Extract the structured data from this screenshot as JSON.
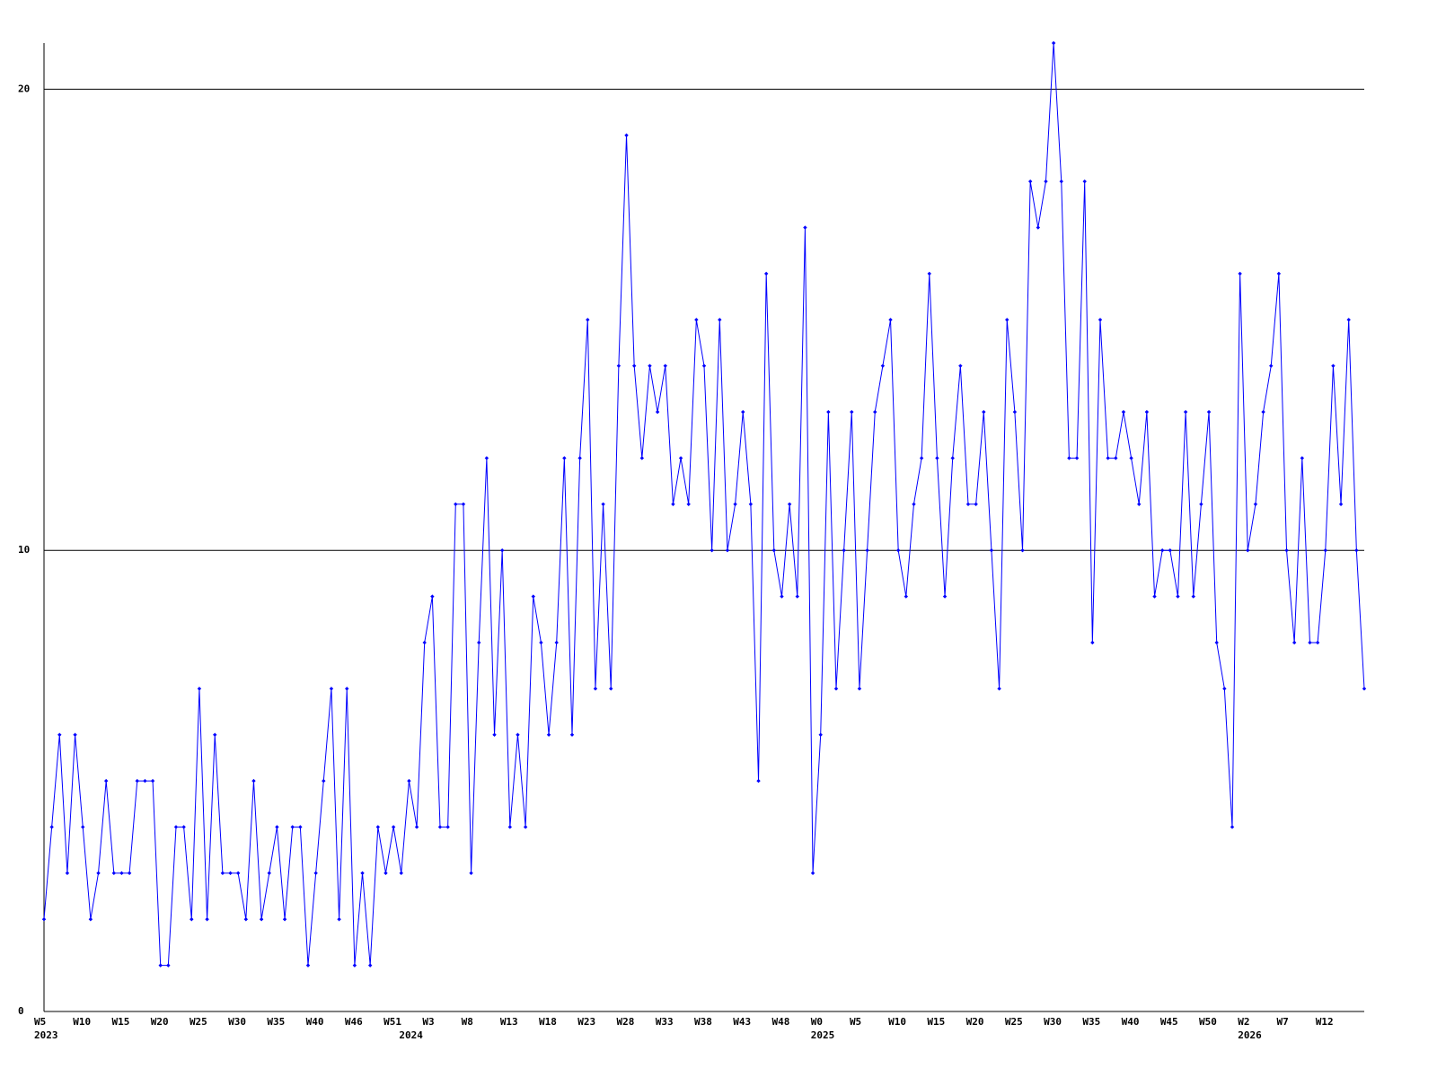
{
  "chart_data": {
    "type": "line",
    "categories": [
      "W5",
      null,
      null,
      null,
      null,
      "W10",
      null,
      null,
      null,
      null,
      "W15",
      null,
      null,
      null,
      null,
      "W20",
      null,
      null,
      null,
      null,
      "W25",
      null,
      null,
      null,
      null,
      "W30",
      null,
      null,
      null,
      null,
      "W35",
      null,
      null,
      null,
      null,
      "W40",
      null,
      null,
      null,
      null,
      "W46",
      null,
      null,
      null,
      null,
      "W51",
      null,
      null,
      null,
      null,
      "W3",
      null,
      null,
      null,
      null,
      "W8",
      null,
      null,
      null,
      null,
      "W13",
      null,
      null,
      null,
      null,
      "W18",
      null,
      null,
      null,
      null,
      "W23",
      null,
      null,
      null,
      null,
      "W28",
      null,
      null,
      null,
      null,
      "W33",
      null,
      null,
      null,
      null,
      "W38",
      null,
      null,
      null,
      null,
      "W43",
      null,
      null,
      null,
      null,
      "W48",
      null,
      null,
      null,
      null,
      "W0",
      null,
      null,
      null,
      null,
      "W5",
      null,
      null,
      null,
      null,
      "W10",
      null,
      null,
      null,
      null,
      "W15",
      null,
      null,
      null,
      null,
      "W20",
      null,
      null,
      null,
      null,
      "W25",
      null,
      null,
      null,
      null,
      "W30",
      null,
      null,
      null,
      null,
      "W35",
      null,
      null,
      null,
      null,
      "W40",
      null,
      null,
      null,
      null,
      "W45",
      null,
      null,
      null,
      null,
      "W50",
      null,
      null,
      null,
      null,
      "W2",
      null,
      null,
      null,
      null,
      "W7",
      null,
      null,
      null,
      null,
      "W12",
      null,
      null,
      null,
      null,
      null
    ],
    "year_labels": [
      {
        "value": 0,
        "label": "2023"
      },
      {
        "value": 47,
        "label": "2024"
      },
      {
        "value": 100,
        "label": "2025"
      },
      {
        "value": 155,
        "label": "2026"
      }
    ],
    "series": [
      {
        "color": "#0000ff",
        "values": [
          2,
          4,
          6,
          3,
          6,
          4,
          2,
          3,
          5,
          3,
          3,
          3,
          5,
          5,
          5,
          1,
          1,
          4,
          4,
          2,
          7,
          2,
          6,
          3,
          3,
          3,
          2,
          5,
          2,
          3,
          4,
          2,
          4,
          4,
          1,
          3,
          5,
          7,
          2,
          7,
          1,
          3,
          1,
          4,
          3,
          4,
          3,
          5,
          4,
          8,
          9,
          4,
          4,
          11,
          11,
          3,
          8,
          12,
          6,
          10,
          4,
          6,
          4,
          9,
          8,
          6,
          8,
          12,
          6,
          12,
          15,
          7,
          11,
          7,
          14,
          19,
          14,
          12,
          14,
          13,
          14,
          11,
          12,
          11,
          15,
          14,
          10,
          15,
          10,
          11,
          13,
          11,
          5,
          16,
          10,
          9,
          11,
          9,
          17,
          3,
          6,
          13,
          7,
          10,
          13,
          7,
          10,
          13,
          14,
          15,
          10,
          9,
          11,
          12,
          16,
          12,
          9,
          12,
          14,
          11,
          11,
          13,
          10,
          7,
          15,
          13,
          10,
          18,
          17,
          18,
          21,
          18,
          12,
          12,
          18,
          8,
          15,
          12,
          12,
          13,
          12,
          11,
          13,
          9,
          10,
          10,
          9,
          13,
          9,
          11,
          13,
          8,
          7,
          4,
          16,
          10,
          11,
          13,
          14,
          16,
          10,
          8,
          12,
          8,
          8,
          10,
          14,
          11,
          15,
          10,
          7
        ]
      }
    ],
    "ylim": [
      0,
      21
    ],
    "yticks": [
      0,
      10,
      20
    ],
    "grid": true
  }
}
